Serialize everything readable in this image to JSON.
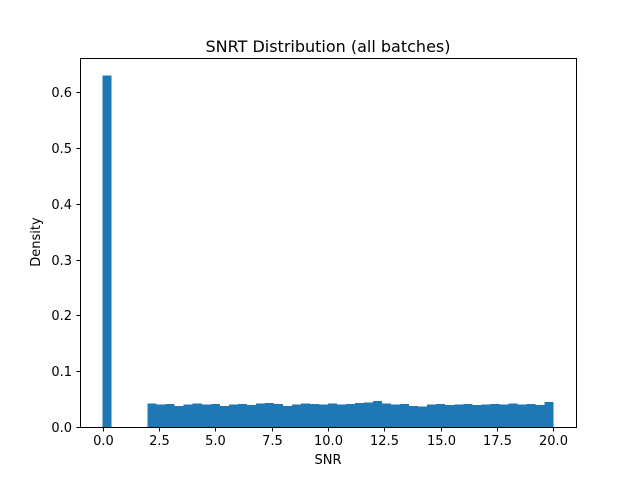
{
  "figure": {
    "background_color": "#ffffff",
    "frame_color": "#000000",
    "text_color": "#000000"
  },
  "chart_data": {
    "type": "bar",
    "subtype": "histogram",
    "title": "SNRT Distribution (all batches)",
    "xlabel": "SNR",
    "ylabel": "Density",
    "bar_color": "#1f77b4",
    "grid": false,
    "legend": false,
    "xlim": [
      -1.0,
      21.0
    ],
    "ylim": [
      0.0,
      0.6615
    ],
    "x_data_range": [
      0.0,
      20.0
    ],
    "xticks": [
      0.0,
      2.5,
      5.0,
      7.5,
      10.0,
      12.5,
      15.0,
      17.5,
      20.0
    ],
    "xtick_labels": [
      "0.0",
      "2.5",
      "5.0",
      "7.5",
      "10.0",
      "12.5",
      "15.0",
      "17.5",
      "20.0"
    ],
    "yticks": [
      0.0,
      0.1,
      0.2,
      0.3,
      0.4,
      0.5,
      0.6
    ],
    "ytick_labels": [
      "0.0",
      "0.1",
      "0.2",
      "0.3",
      "0.4",
      "0.5",
      "0.6"
    ],
    "bin_start": 0.0,
    "bin_width": 0.4,
    "densities": [
      0.63,
      0.0,
      0.0,
      0.0,
      0.0,
      0.042,
      0.04,
      0.041,
      0.038,
      0.04,
      0.042,
      0.04,
      0.041,
      0.038,
      0.04,
      0.041,
      0.039,
      0.042,
      0.043,
      0.041,
      0.038,
      0.04,
      0.042,
      0.041,
      0.04,
      0.042,
      0.04,
      0.041,
      0.043,
      0.044,
      0.047,
      0.042,
      0.04,
      0.041,
      0.038,
      0.037,
      0.04,
      0.041,
      0.039,
      0.04,
      0.041,
      0.039,
      0.04,
      0.041,
      0.04,
      0.042,
      0.04,
      0.041,
      0.039,
      0.045
    ]
  }
}
